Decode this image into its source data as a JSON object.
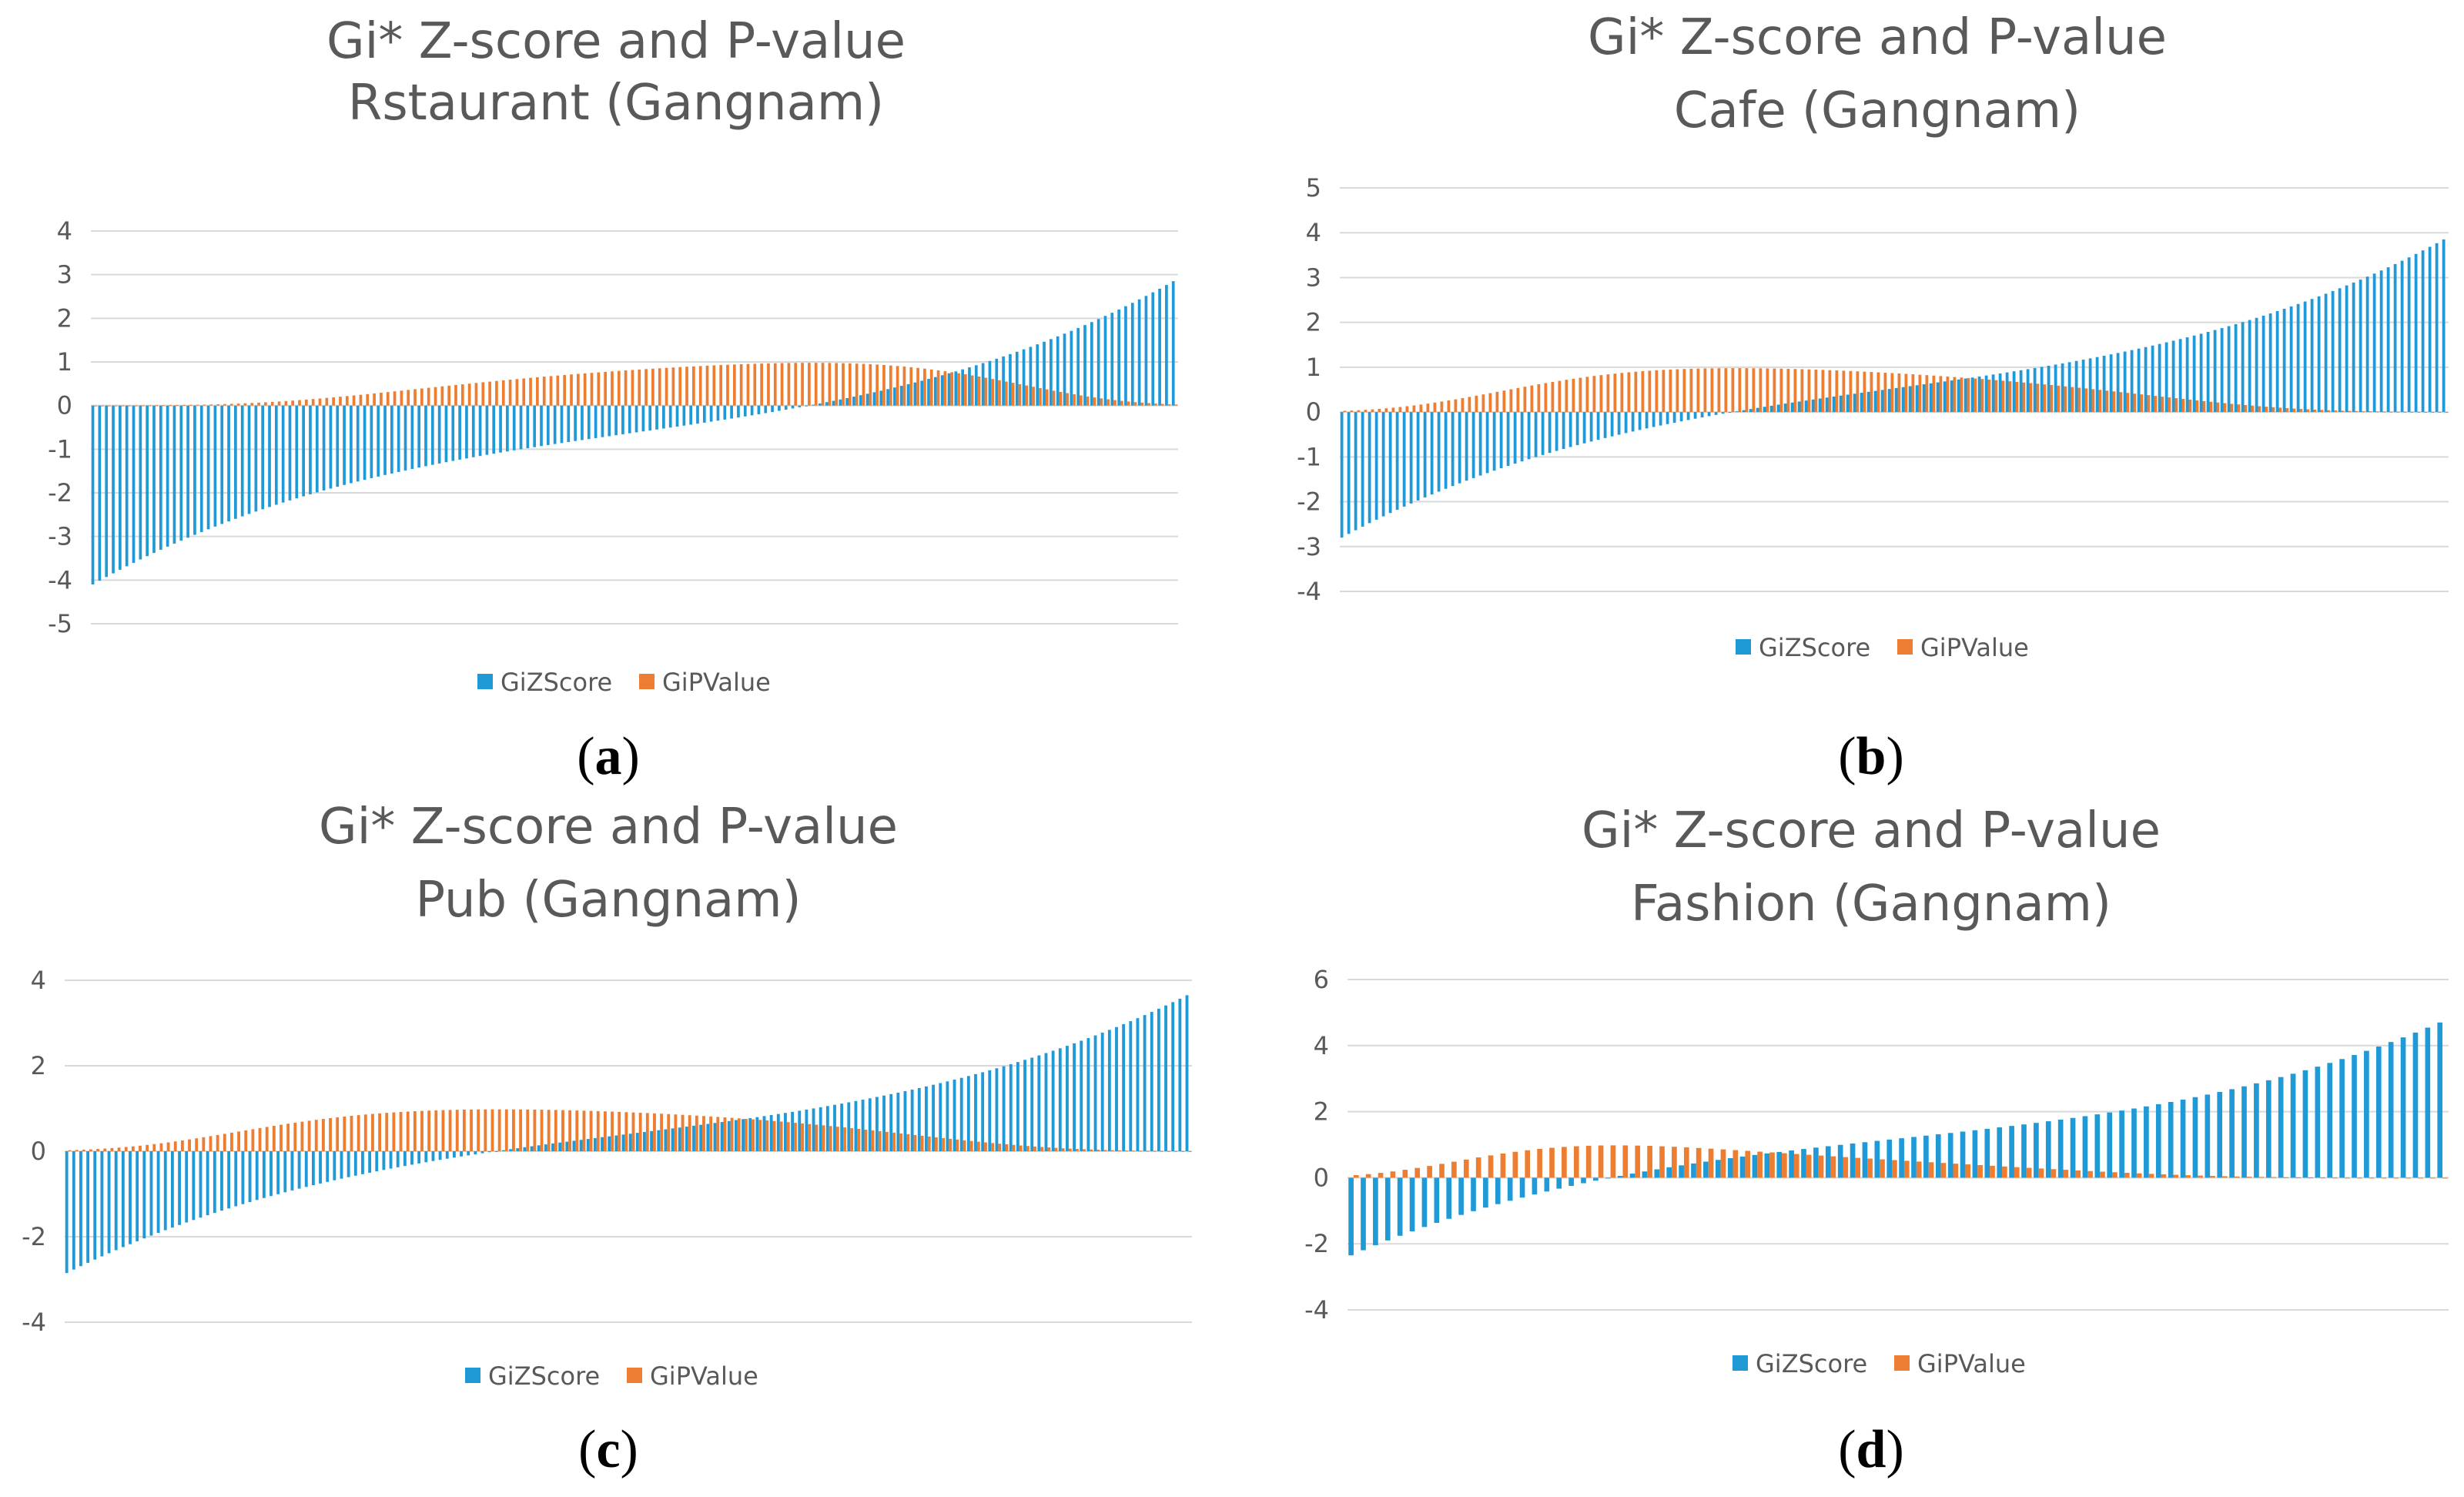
{
  "colors": {
    "z": "#1f9ad6",
    "p": "#ed7d31",
    "grid": "#d9d9d9",
    "text": "#595959"
  },
  "panels": [
    {
      "label": "a",
      "title_lines": [
        "Gi* Z-score and P-value",
        "Rstaurant (Gangnam)"
      ]
    },
    {
      "label": "b",
      "title_lines": [
        "Gi* Z-score and P-value",
        "Cafe (Gangnam)"
      ]
    },
    {
      "label": "c",
      "title_lines": [
        "Gi* Z-score and P-value",
        "Pub (Gangnam)"
      ]
    },
    {
      "label": "d",
      "title_lines": [
        "Gi* Z-score and P-value",
        "Fashion (Gangnam)"
      ]
    }
  ],
  "chart_data": [
    {
      "type": "bar",
      "title": "Gi* Z-score and P-value Rstaurant (Gangnam)",
      "series": [
        {
          "name": "GiZScore"
        },
        {
          "name": "GiPValue"
        }
      ],
      "n": 160,
      "z_start": -4.1,
      "z_end": 2.85,
      "p_peak": 0.98,
      "ylim": [
        -5,
        4
      ],
      "yticks": [
        4,
        3,
        2,
        1,
        0,
        -1,
        -2,
        -3,
        -4,
        -5
      ],
      "grid": true,
      "legend_position": "bottom"
    },
    {
      "type": "bar",
      "title": "Gi* Z-score and P-value Cafe (Gangnam)",
      "series": [
        {
          "name": "GiZScore"
        },
        {
          "name": "GiPValue"
        }
      ],
      "n": 160,
      "z_start": -2.8,
      "z_end": 3.85,
      "p_peak": 0.98,
      "ylim": [
        -4,
        5
      ],
      "yticks": [
        5,
        4,
        3,
        2,
        1,
        0,
        -1,
        -2,
        -3,
        -4
      ],
      "grid": true,
      "legend_position": "bottom"
    },
    {
      "type": "bar",
      "title": "Gi* Z-score and P-value Pub (Gangnam)",
      "series": [
        {
          "name": "GiZScore"
        },
        {
          "name": "GiPValue"
        }
      ],
      "n": 160,
      "z_start": -2.85,
      "z_end": 3.65,
      "p_peak": 0.98,
      "ylim": [
        -4,
        4
      ],
      "yticks": [
        4,
        2,
        0,
        -2,
        -4
      ],
      "grid": true,
      "legend_position": "bottom"
    },
    {
      "type": "bar",
      "title": "Gi* Z-score and P-value Fashion (Gangnam)",
      "series": [
        {
          "name": "GiZScore"
        },
        {
          "name": "GiPValue"
        }
      ],
      "n": 90,
      "z_start": -2.35,
      "z_end": 4.7,
      "p_peak": 0.98,
      "ylim": [
        -4,
        6
      ],
      "yticks": [
        6,
        4,
        2,
        0,
        -2,
        -4
      ],
      "grid": true,
      "legend_position": "bottom"
    }
  ]
}
